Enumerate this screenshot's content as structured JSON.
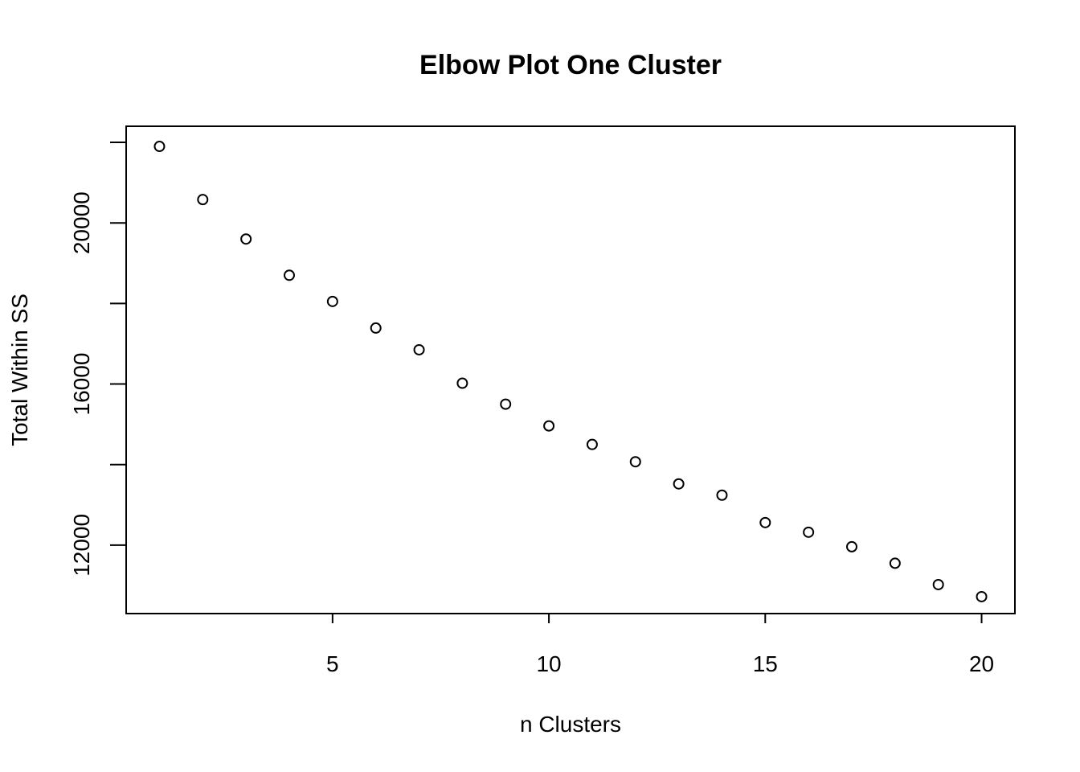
{
  "chart_data": {
    "type": "scatter",
    "title": "Elbow Plot One Cluster",
    "xlabel": "n Clusters",
    "ylabel": "Total Within SS",
    "x": [
      1,
      2,
      3,
      4,
      5,
      6,
      7,
      8,
      9,
      10,
      11,
      12,
      13,
      14,
      15,
      16,
      17,
      18,
      19,
      20
    ],
    "y": [
      21900,
      20580,
      19600,
      18700,
      18050,
      17390,
      16850,
      16020,
      15500,
      14960,
      14500,
      14070,
      13520,
      13240,
      12560,
      12320,
      11960,
      11550,
      11020,
      10720
    ],
    "xlim": [
      0.23,
      20.77
    ],
    "ylim": [
      10300,
      22400
    ],
    "x_ticks": [
      5,
      10,
      15,
      20
    ],
    "y_ticks": [
      12000,
      14000,
      16000,
      18000,
      20000,
      22000
    ],
    "y_tick_labels": [
      "12000",
      "",
      "16000",
      "",
      "20000",
      ""
    ],
    "grid": false,
    "legend": "none",
    "marker": "open-circle",
    "colors": {
      "points": "#000000",
      "axes": "#000000",
      "background": "#ffffff"
    }
  }
}
